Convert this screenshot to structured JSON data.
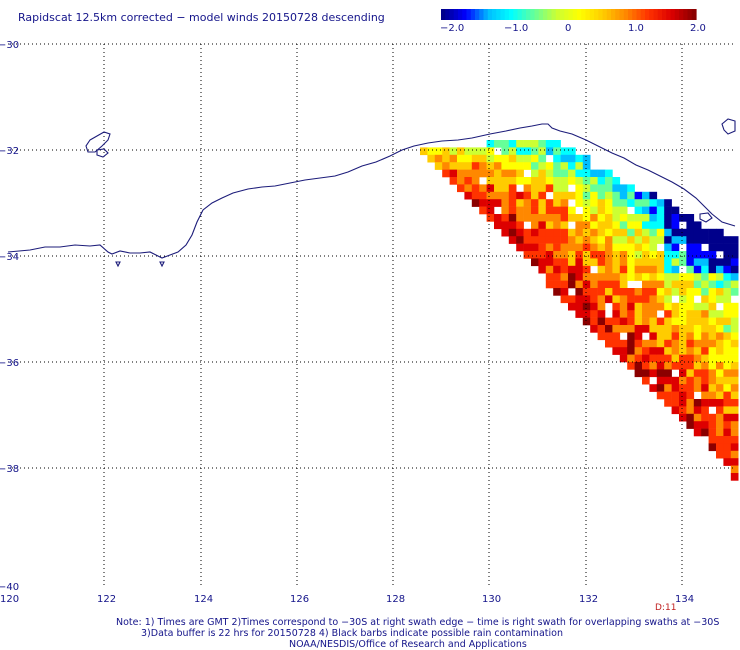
{
  "title": "Rapidscat 12.5km corrected − model winds 20150728 descending",
  "colorbar": {
    "tick_labels": [
      "−2.0",
      "−1.0",
      "0",
      "1.0",
      "2.0"
    ],
    "min": -2.0,
    "max": 2.0,
    "colors": [
      "#00008b",
      "#0000ff",
      "#00bfff",
      "#00ffff",
      "#66ff99",
      "#ccff33",
      "#ffff00",
      "#ffcc00",
      "#ff8800",
      "#ff3300",
      "#dd0000",
      "#8b0000"
    ]
  },
  "map": {
    "lon_range": [
      120,
      135
    ],
    "lat_range": [
      -40,
      -30
    ],
    "lon_ticks": [
      "120",
      "122",
      "124",
      "126",
      "128",
      "130",
      "132",
      "134"
    ],
    "lat_ticks": [
      "−30",
      "−32",
      "−34",
      "−36",
      "−38",
      "−40"
    ],
    "gridlines": true,
    "coastline": "southern Australia (Great Australian Bight)"
  },
  "swath": {
    "field": "wind speed difference (corrected − model)",
    "pattern": "descending swath wedge in lower-right; negative (blue/cyan) near coast, positive (orange/dark red) toward south-west edge"
  },
  "corner_label": "D:11",
  "notes": [
    "Note: 1) Times are GMT 2)Times correspond to −30S at right swath edge − time is right swath for overlapping swaths at −30S",
    "3)Data buffer is 22 hrs for 20150728 4) Black barbs indicate possible rain contamination",
    "NOAA/NESDIS/Office of Research and Applications"
  ]
}
